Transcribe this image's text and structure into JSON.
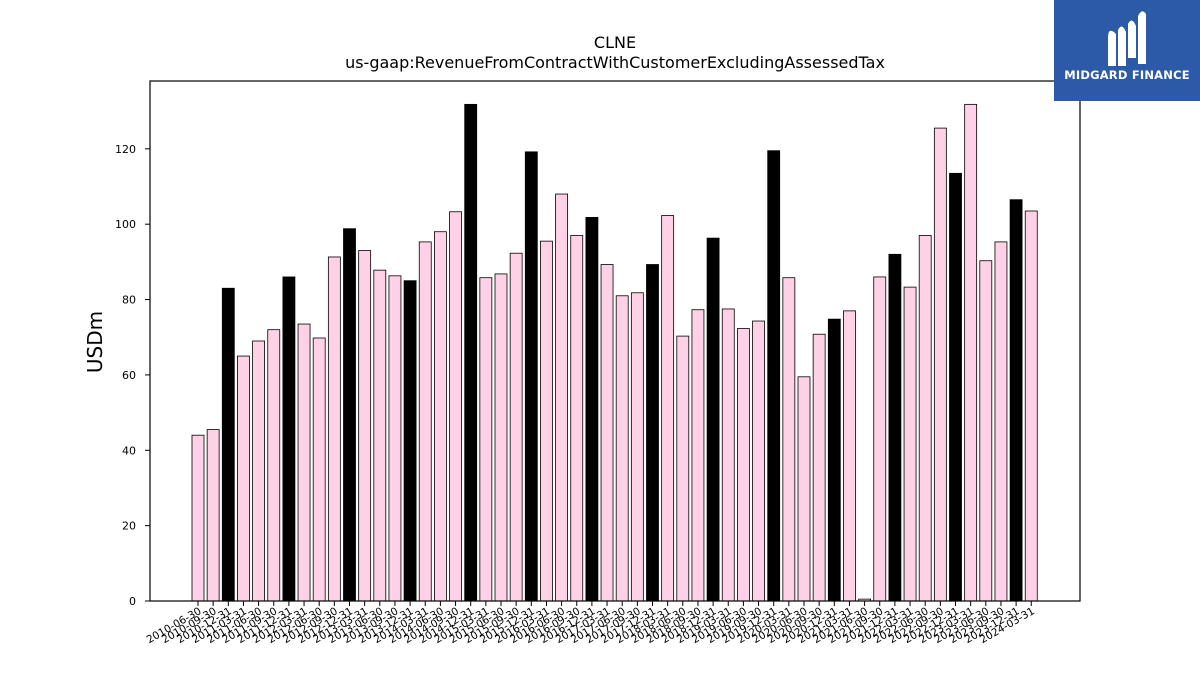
{
  "header": {
    "title": "CLNE",
    "subtitle": "us-gaap:RevenueFromContractWithCustomerExcludingAssessedTax"
  },
  "logo": {
    "text": "MIDGARD FINANCE",
    "color": "#2c5aa8"
  },
  "chart_data": {
    "type": "bar",
    "title": "CLNE",
    "subtitle": "us-gaap:RevenueFromContractWithCustomerExcludingAssessedTax",
    "ylabel": "USDm",
    "xlabel": "",
    "ylim": [
      0,
      138
    ],
    "yticks": [
      0,
      20,
      40,
      60,
      80,
      100,
      120
    ],
    "grid": false,
    "colors": {
      "quarterly": "#ffd1e6",
      "annual": "#000000",
      "edge": "#000000"
    },
    "categories": [
      "2010-06-30",
      "2010-09-30",
      "2010-12-31",
      "2011-03-31",
      "2011-06-30",
      "2011-09-30",
      "2011-12-31",
      "2012-03-31",
      "2012-06-30",
      "2012-09-30",
      "2012-12-31",
      "2013-03-31",
      "2013-06-30",
      "2013-09-30",
      "2013-12-31",
      "2014-03-31",
      "2014-06-30",
      "2014-09-30",
      "2014-12-31",
      "2015-03-31",
      "2015-06-30",
      "2015-09-30",
      "2015-12-31",
      "2016-03-31",
      "2016-06-30",
      "2016-09-30",
      "2016-12-31",
      "2017-03-31",
      "2017-06-30",
      "2017-09-30",
      "2017-12-31",
      "2018-03-31",
      "2018-06-30",
      "2018-09-30",
      "2018-12-31",
      "2019-03-31",
      "2019-06-30",
      "2019-09-30",
      "2019-12-31",
      "2020-03-31",
      "2020-06-30",
      "2020-09-30",
      "2020-12-31",
      "2021-03-31",
      "2021-06-30",
      "2021-09-30",
      "2021-12-31",
      "2022-03-31",
      "2022-06-30",
      "2022-09-30",
      "2022-12-31",
      "2023-03-31",
      "2023-06-30",
      "2023-09-30",
      "2023-12-31",
      "2024-03-31"
    ],
    "values": [
      44,
      45.5,
      83,
      65,
      69,
      72,
      86,
      73.5,
      69.8,
      91.3,
      98.8,
      93,
      87.8,
      86.3,
      85,
      95.3,
      98,
      103.3,
      131.8,
      85.8,
      86.8,
      92.3,
      119.2,
      95.5,
      108,
      97,
      101.8,
      89.3,
      81,
      81.8,
      89.3,
      102.3,
      70.3,
      77.3,
      96.3,
      77.5,
      72.3,
      74.3,
      119.5,
      85.8,
      59.5,
      70.8,
      74.8,
      77,
      0.5,
      86,
      92,
      83.3,
      97,
      125.5,
      113.5,
      131.8,
      90.3,
      95.3,
      106.5,
      103.5
    ],
    "is_annual": [
      false,
      false,
      true,
      false,
      false,
      false,
      true,
      false,
      false,
      false,
      true,
      false,
      false,
      false,
      true,
      false,
      false,
      false,
      true,
      false,
      false,
      false,
      true,
      false,
      false,
      false,
      true,
      false,
      false,
      false,
      true,
      false,
      false,
      false,
      true,
      false,
      false,
      false,
      true,
      false,
      false,
      false,
      true,
      false,
      false,
      false,
      true,
      false,
      false,
      false,
      true,
      false,
      false,
      false,
      true,
      false
    ]
  }
}
